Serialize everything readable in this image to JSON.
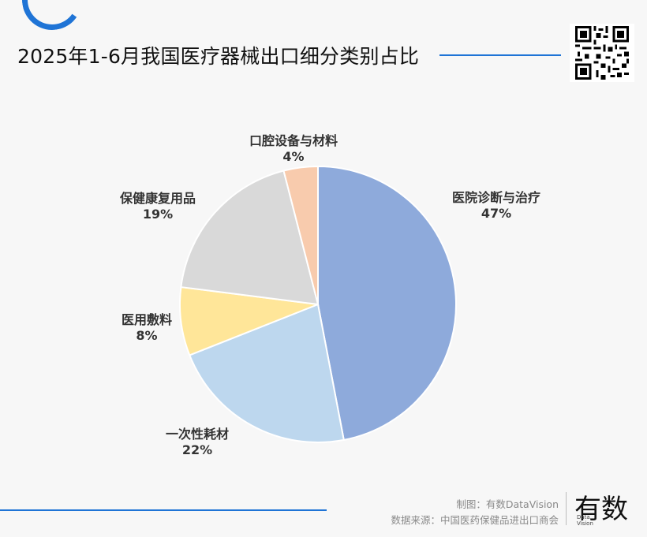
{
  "title": "2025年1-6月我国医疗器械出口细分类别占比",
  "chart_data": {
    "type": "pie",
    "title": "2025年1-6月我国医疗器械出口细分类别占比",
    "slices": [
      {
        "name": "医院诊断与治疗",
        "value": 47,
        "label": "47%",
        "color": "#8eaadb"
      },
      {
        "name": "一次性耗材",
        "value": 22,
        "label": "22%",
        "color": "#bdd7ee"
      },
      {
        "name": "医用敷料",
        "value": 8,
        "label": "8%",
        "color": "#ffe699"
      },
      {
        "name": "保健康复用品",
        "value": 19,
        "label": "19%",
        "color": "#d9d9d9"
      },
      {
        "name": "口腔设备与材料",
        "value": 4,
        "label": "4%",
        "color": "#f8cbad"
      }
    ],
    "start": "12 o'clock",
    "direction": "clockwise",
    "legend": "none"
  },
  "footer": {
    "maker": "制图：有数DataVision",
    "source": "数据来源：中国医药保健品进出口商会",
    "brand": "有数",
    "brand_sub_1": "Data",
    "brand_sub_2": "Vision"
  },
  "colors": {
    "accent": "#1f74d6"
  },
  "icons": {
    "qr": "qr-code-icon",
    "corner": "arc-decoration"
  }
}
